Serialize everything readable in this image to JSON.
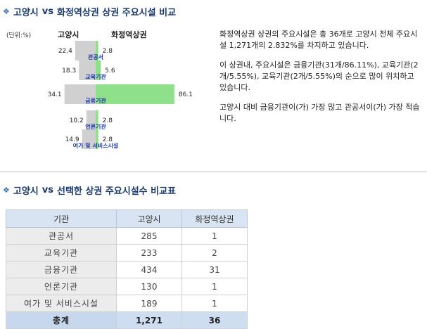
{
  "top_section": {
    "title_left": "고양시",
    "title_vs": "vs",
    "title_right": "화정역상권 상권 주요시설 비교",
    "unit_label": "(단위:%)",
    "col_left": "고양시",
    "col_right": "화정역상권",
    "description": [
      "화정역상권 상권의 주요시설은 총 36개로 고양시 전체 주요시설 1,271개의 2.832%를 차지하고 있습니다.",
      "이 상권내, 주요시설은 금융기관(31개/86.11%), 교육기관(2개/5.55%), 교육기관(2개/5.55%)의 순으로 많이 위치하고 있습니다.",
      "고양시 대비 금융기관이(가) 가장 많고 관공서이(가) 가장 적습니다."
    ]
  },
  "chart_data": {
    "type": "bar",
    "orientation": "horizontal-back-to-back",
    "categories": [
      "관공서",
      "교육기관",
      "금융기관",
      "언론기관",
      "여가 및 서비스시설"
    ],
    "series": [
      {
        "name": "고양시",
        "values": [
          22.4,
          18.3,
          34.1,
          10.2,
          14.9
        ],
        "color": "#d0d0d0"
      },
      {
        "name": "화정역상권",
        "values": [
          2.8,
          5.6,
          86.1,
          2.8,
          2.8
        ],
        "color": "#8ee08a"
      }
    ],
    "value_labels_left": [
      "22.4",
      "18.3",
      "34.1",
      "10.2",
      "14.9"
    ],
    "value_labels_right": [
      "2.8",
      "5.6",
      "86.1",
      "2.8",
      "2.8"
    ],
    "category_label_color": "#1a3aa8"
  },
  "bottom_section": {
    "title_left": "고양시",
    "title_vs": "vs",
    "title_right": "선택한 상권 주요시설수 비교표",
    "table": {
      "headers": [
        "기관",
        "고양시",
        "화정역상권"
      ],
      "rows": [
        [
          "관공서",
          "285",
          "1"
        ],
        [
          "교육기관",
          "233",
          "2"
        ],
        [
          "금융기관",
          "434",
          "31"
        ],
        [
          "언론기관",
          "130",
          "1"
        ],
        [
          "여가 및 서비스시설",
          "189",
          "1"
        ]
      ],
      "total": [
        "총계",
        "1,271",
        "36"
      ]
    }
  },
  "colors": {
    "heading": "#1a3a6e",
    "bullet": "#3a6fb5",
    "bar_left": "#d0d0d0",
    "bar_right": "#8ee08a",
    "table_header_bg": "#d9e4f2",
    "table_total_bg": "#cfddf0"
  },
  "icons": {
    "heading_bullet": "diamond-bullet-icon"
  }
}
